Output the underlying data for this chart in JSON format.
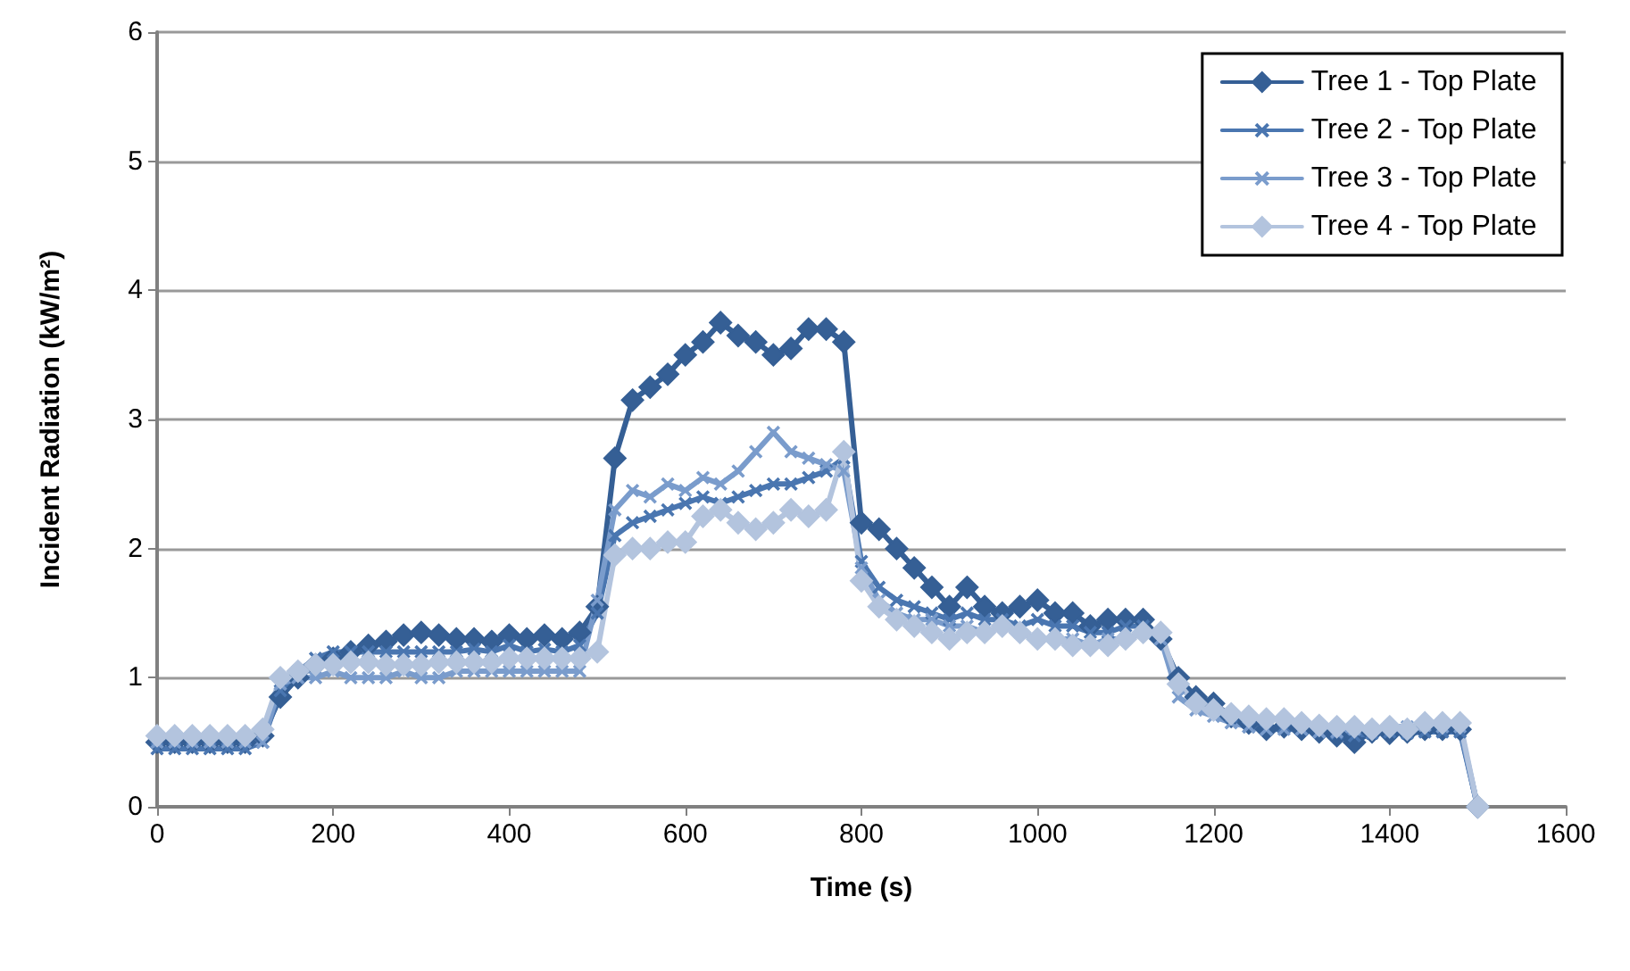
{
  "chart_data": {
    "type": "line",
    "xlabel": "Time (s)",
    "ylabel": "Incident Radiation (kW/m²)",
    "x": [
      0,
      20,
      40,
      60,
      80,
      100,
      120,
      140,
      160,
      180,
      200,
      220,
      240,
      260,
      280,
      300,
      320,
      340,
      360,
      380,
      400,
      420,
      440,
      460,
      480,
      500,
      520,
      540,
      560,
      580,
      600,
      620,
      640,
      660,
      680,
      700,
      720,
      740,
      760,
      780,
      800,
      820,
      840,
      860,
      880,
      900,
      920,
      940,
      960,
      980,
      1000,
      1020,
      1040,
      1060,
      1080,
      1100,
      1120,
      1140,
      1160,
      1180,
      1200,
      1220,
      1240,
      1260,
      1280,
      1300,
      1320,
      1340,
      1360,
      1380,
      1400,
      1420,
      1440,
      1460,
      1480,
      1500
    ],
    "series": [
      {
        "name": "Tree 1 - Top Plate",
        "color": "#355f95",
        "marker": "diamond",
        "values": [
          0.5,
          0.5,
          0.5,
          0.5,
          0.5,
          0.5,
          0.55,
          0.85,
          1.0,
          1.1,
          1.15,
          1.2,
          1.25,
          1.28,
          1.33,
          1.35,
          1.33,
          1.3,
          1.3,
          1.28,
          1.33,
          1.3,
          1.33,
          1.3,
          1.35,
          1.55,
          2.7,
          3.15,
          3.25,
          3.35,
          3.5,
          3.6,
          3.75,
          3.65,
          3.6,
          3.5,
          3.55,
          3.7,
          3.7,
          3.6,
          2.2,
          2.15,
          2.0,
          1.85,
          1.7,
          1.55,
          1.7,
          1.55,
          1.5,
          1.55,
          1.6,
          1.5,
          1.5,
          1.4,
          1.45,
          1.45,
          1.45,
          1.3,
          1.0,
          0.85,
          0.8,
          0.7,
          0.65,
          0.6,
          0.62,
          0.6,
          0.58,
          0.55,
          0.5,
          0.58,
          0.57,
          0.58,
          0.6,
          0.6,
          0.6,
          0
        ]
      },
      {
        "name": "Tree 2 - Top Plate",
        "color": "#4a76b0",
        "marker": "cross",
        "values": [
          0.45,
          0.45,
          0.45,
          0.45,
          0.45,
          0.45,
          0.5,
          0.9,
          1.05,
          1.15,
          1.2,
          1.2,
          1.2,
          1.2,
          1.2,
          1.2,
          1.2,
          1.2,
          1.22,
          1.2,
          1.25,
          1.2,
          1.22,
          1.2,
          1.25,
          1.5,
          2.1,
          2.2,
          2.25,
          2.3,
          2.35,
          2.4,
          2.35,
          2.4,
          2.45,
          2.5,
          2.5,
          2.55,
          2.6,
          2.7,
          1.9,
          1.7,
          1.6,
          1.55,
          1.5,
          1.45,
          1.5,
          1.45,
          1.45,
          1.4,
          1.45,
          1.4,
          1.4,
          1.35,
          1.35,
          1.4,
          1.4,
          1.3,
          0.95,
          0.8,
          0.75,
          0.7,
          0.62,
          0.6,
          0.62,
          0.6,
          0.58,
          0.57,
          0.55,
          0.57,
          0.58,
          0.57,
          0.58,
          0.58,
          0.58,
          0
        ]
      },
      {
        "name": "Tree 3 - Top Plate",
        "color": "#7a9ccc",
        "marker": "cross",
        "values": [
          0.5,
          0.5,
          0.5,
          0.5,
          0.5,
          0.5,
          0.5,
          0.95,
          1.0,
          1.0,
          1.05,
          1.0,
          1.0,
          1.0,
          1.05,
          1.0,
          1.0,
          1.05,
          1.05,
          1.05,
          1.05,
          1.05,
          1.05,
          1.05,
          1.05,
          1.6,
          2.3,
          2.45,
          2.4,
          2.5,
          2.45,
          2.55,
          2.5,
          2.6,
          2.75,
          2.9,
          2.75,
          2.7,
          2.65,
          2.6,
          1.85,
          1.6,
          1.5,
          1.45,
          1.45,
          1.4,
          1.4,
          1.35,
          1.4,
          1.35,
          1.3,
          1.3,
          1.3,
          1.25,
          1.3,
          1.3,
          1.35,
          1.3,
          0.85,
          0.75,
          0.7,
          0.65,
          0.62,
          0.6,
          0.6,
          0.6,
          0.58,
          0.58,
          0.6,
          0.6,
          0.62,
          0.62,
          0.63,
          0.62,
          0.62,
          0
        ]
      },
      {
        "name": "Tree 4 - Top Plate",
        "color": "#b3c4de",
        "marker": "diamond",
        "values": [
          0.55,
          0.55,
          0.55,
          0.55,
          0.55,
          0.55,
          0.6,
          1.0,
          1.05,
          1.1,
          1.1,
          1.12,
          1.12,
          1.1,
          1.1,
          1.1,
          1.12,
          1.12,
          1.12,
          1.12,
          1.15,
          1.15,
          1.15,
          1.15,
          1.15,
          1.2,
          1.95,
          2.0,
          2.0,
          2.05,
          2.05,
          2.25,
          2.3,
          2.2,
          2.15,
          2.2,
          2.3,
          2.25,
          2.3,
          2.75,
          1.75,
          1.55,
          1.45,
          1.4,
          1.35,
          1.3,
          1.35,
          1.35,
          1.4,
          1.35,
          1.3,
          1.3,
          1.25,
          1.25,
          1.25,
          1.3,
          1.35,
          1.35,
          0.95,
          0.8,
          0.75,
          0.72,
          0.7,
          0.68,
          0.68,
          0.65,
          0.63,
          0.62,
          0.62,
          0.6,
          0.62,
          0.6,
          0.65,
          0.65,
          0.65,
          0
        ]
      }
    ],
    "xlim": [
      0,
      1600
    ],
    "xticks": [
      0,
      200,
      400,
      600,
      800,
      1000,
      1200,
      1400,
      1600
    ],
    "ylim": [
      0,
      6
    ],
    "yticks": [
      0,
      1,
      2,
      3,
      4,
      5,
      6
    ],
    "grid": "y",
    "legend": "top right"
  }
}
